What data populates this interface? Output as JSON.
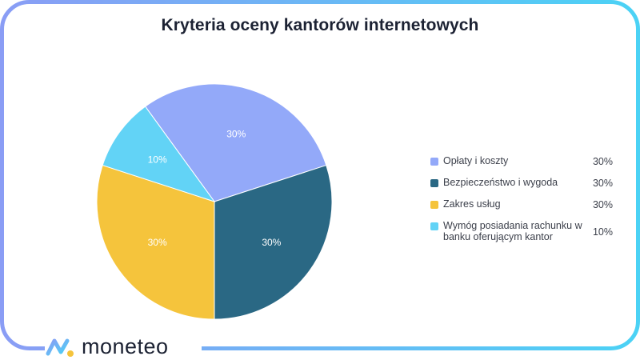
{
  "brand": {
    "name": "moneteo",
    "frame_gradient": [
      "#8a9df5",
      "#4bd2f5"
    ]
  },
  "chart_data": {
    "type": "pie",
    "title": "Kryteria oceny kantorów internetowych",
    "slices": [
      {
        "label": "Opłaty i koszty",
        "value": 30,
        "value_label": "30%",
        "color": "#93a9f9"
      },
      {
        "label": "Bezpieczeństwo i wygoda",
        "value": 30,
        "value_label": "30%",
        "color": "#2a6884"
      },
      {
        "label": "Zakres usług",
        "value": 30,
        "value_label": "30%",
        "color": "#f5c43c"
      },
      {
        "label": "Wymóg posiadania rachunku w banku oferującym kantor",
        "value": 10,
        "value_label": "10%",
        "color": "#62d3f6"
      }
    ],
    "legend_position": "right",
    "slice_label_color": "#ffffff"
  }
}
